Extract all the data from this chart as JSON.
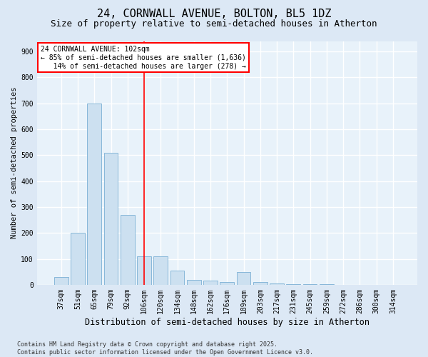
{
  "title1": "24, CORNWALL AVENUE, BOLTON, BL5 1DZ",
  "title2": "Size of property relative to semi-detached houses in Atherton",
  "xlabel": "Distribution of semi-detached houses by size in Atherton",
  "ylabel": "Number of semi-detached properties",
  "categories": [
    "37sqm",
    "51sqm",
    "65sqm",
    "79sqm",
    "92sqm",
    "106sqm",
    "120sqm",
    "134sqm",
    "148sqm",
    "162sqm",
    "176sqm",
    "189sqm",
    "203sqm",
    "217sqm",
    "231sqm",
    "245sqm",
    "259sqm",
    "272sqm",
    "286sqm",
    "300sqm",
    "314sqm"
  ],
  "values": [
    30,
    200,
    700,
    510,
    270,
    110,
    110,
    55,
    20,
    15,
    10,
    50,
    10,
    5,
    2,
    1,
    1,
    0,
    0,
    0,
    0
  ],
  "bar_color": "#cce0f0",
  "bar_edge_color": "#7aafd4",
  "vline_color": "red",
  "vline_x_index": 5,
  "annotation_text_line1": "24 CORNWALL AVENUE: 102sqm",
  "annotation_text_line2": "← 85% of semi-detached houses are smaller (1,636)",
  "annotation_text_line3": "   14% of semi-detached houses are larger (278) →",
  "box_color": "red",
  "ylim": [
    0,
    940
  ],
  "yticks": [
    0,
    100,
    200,
    300,
    400,
    500,
    600,
    700,
    800,
    900
  ],
  "bg_color": "#dce8f5",
  "plot_bg_color": "#e8f2fa",
  "grid_color": "white",
  "footnote": "Contains HM Land Registry data © Crown copyright and database right 2025.\nContains public sector information licensed under the Open Government Licence v3.0.",
  "title1_fontsize": 11,
  "title2_fontsize": 9,
  "xlabel_fontsize": 8.5,
  "ylabel_fontsize": 7.5,
  "tick_fontsize": 7,
  "annot_fontsize": 7,
  "footnote_fontsize": 6
}
